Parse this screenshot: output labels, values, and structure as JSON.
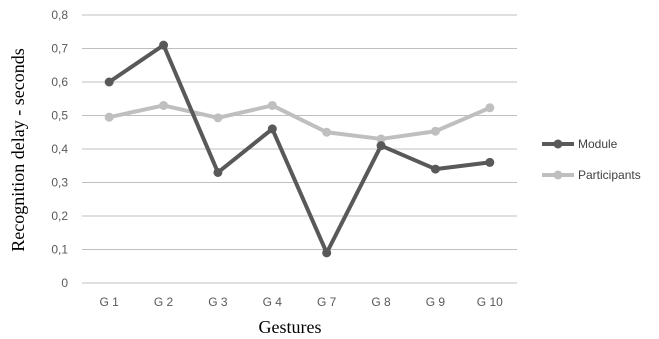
{
  "chart_data": {
    "type": "line",
    "categories": [
      "G 1",
      "G 2",
      "G 3",
      "G 4",
      "G 7",
      "G 8",
      "G 9",
      "G 10"
    ],
    "series": [
      {
        "name": "Module",
        "color": "#595959",
        "values": [
          0.6,
          0.71,
          0.33,
          0.46,
          0.09,
          0.41,
          0.34,
          0.36
        ]
      },
      {
        "name": "Participants",
        "color": "#bfbfbf",
        "values": [
          0.495,
          0.53,
          0.493,
          0.53,
          0.45,
          0.43,
          0.453,
          0.523
        ]
      }
    ],
    "xlabel": "Gestures",
    "ylabel": "Recognition delay - seconds",
    "ylim": [
      0,
      0.8
    ],
    "yticks": [
      "0",
      "0,1",
      "0,2",
      "0,3",
      "0,4",
      "0,5",
      "0,6",
      "0,7",
      "0,8"
    ],
    "grid": true,
    "legend": "right"
  }
}
